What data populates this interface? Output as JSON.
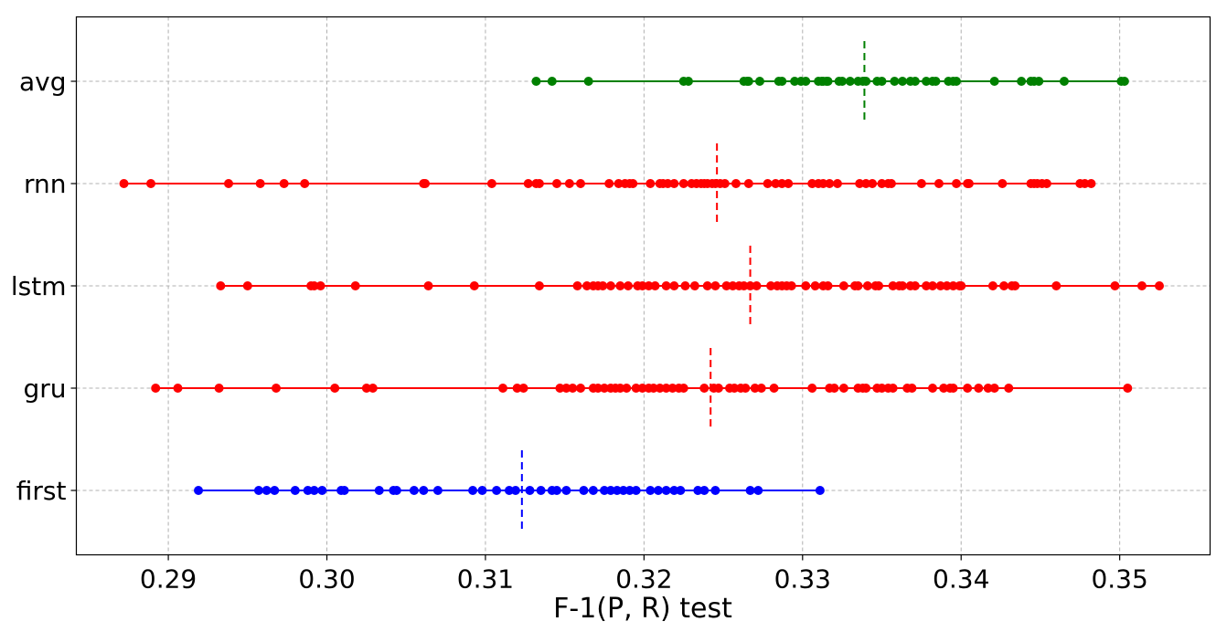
{
  "chart_data": {
    "type": "scatter",
    "xlabel": "F-1(P, R) test",
    "ylabel": "",
    "xlim": [
      0.2842,
      0.3557
    ],
    "xticks": [
      "0.29",
      "0.30",
      "0.31",
      "0.32",
      "0.33",
      "0.34",
      "0.35"
    ],
    "categories": [
      "avg",
      "rnn",
      "lstm",
      "gru",
      "first"
    ],
    "grid": true,
    "series": [
      {
        "category": "avg",
        "color": "#008000",
        "mean": 0.3339,
        "values": [
          0.3132,
          0.3142,
          0.3165,
          0.3225,
          0.3228,
          0.3263,
          0.3265,
          0.3266,
          0.3273,
          0.3285,
          0.3287,
          0.3295,
          0.3299,
          0.3302,
          0.331,
          0.3312,
          0.3313,
          0.3315,
          0.3316,
          0.3323,
          0.3325,
          0.333,
          0.3335,
          0.3338,
          0.334,
          0.3347,
          0.335,
          0.3358,
          0.3363,
          0.3368,
          0.3371,
          0.3378,
          0.3382,
          0.3384,
          0.3392,
          0.3395,
          0.3397,
          0.3421,
          0.3438,
          0.3444,
          0.3446,
          0.3449,
          0.3465,
          0.3501,
          0.3503
        ]
      },
      {
        "category": "rnn",
        "color": "#ff0000",
        "mean": 0.3246,
        "values": [
          0.2872,
          0.2889,
          0.2938,
          0.2958,
          0.2973,
          0.2986,
          0.3061,
          0.3062,
          0.3104,
          0.3127,
          0.3132,
          0.3134,
          0.3145,
          0.3153,
          0.316,
          0.3178,
          0.3184,
          0.3188,
          0.3191,
          0.3193,
          0.3204,
          0.321,
          0.3212,
          0.3215,
          0.3219,
          0.3225,
          0.323,
          0.3233,
          0.3236,
          0.3238,
          0.324,
          0.3243,
          0.3245,
          0.3248,
          0.3251,
          0.3258,
          0.3266,
          0.3278,
          0.3283,
          0.3287,
          0.3291,
          0.3306,
          0.331,
          0.3313,
          0.3317,
          0.3322,
          0.3336,
          0.334,
          0.3344,
          0.335,
          0.3354,
          0.3356,
          0.3375,
          0.3386,
          0.3397,
          0.3404,
          0.3405,
          0.3426,
          0.3444,
          0.3446,
          0.3448,
          0.3451,
          0.3454,
          0.3475,
          0.3478,
          0.3482
        ]
      },
      {
        "category": "lstm",
        "color": "#ff0000",
        "mean": 0.3267,
        "values": [
          0.2933,
          0.295,
          0.299,
          0.2992,
          0.2996,
          0.3018,
          0.3064,
          0.3093,
          0.3134,
          0.3158,
          0.3164,
          0.3168,
          0.3171,
          0.3174,
          0.3179,
          0.3185,
          0.319,
          0.3196,
          0.3199,
          0.3203,
          0.3207,
          0.3214,
          0.3219,
          0.3226,
          0.3232,
          0.324,
          0.3245,
          0.3252,
          0.3256,
          0.326,
          0.3263,
          0.3267,
          0.3271,
          0.328,
          0.3284,
          0.3287,
          0.329,
          0.3293,
          0.3302,
          0.3308,
          0.3313,
          0.3316,
          0.3326,
          0.3333,
          0.3335,
          0.3341,
          0.3346,
          0.3348,
          0.3357,
          0.3361,
          0.3363,
          0.3368,
          0.3371,
          0.3378,
          0.3382,
          0.3387,
          0.3391,
          0.3395,
          0.3399,
          0.34,
          0.342,
          0.3427,
          0.3432,
          0.3434,
          0.346,
          0.3497,
          0.3514,
          0.3525
        ]
      },
      {
        "category": "gru",
        "color": "#ff0000",
        "mean": 0.3242,
        "values": [
          0.2892,
          0.2906,
          0.2932,
          0.2968,
          0.3005,
          0.3025,
          0.3029,
          0.3111,
          0.312,
          0.3124,
          0.3147,
          0.3151,
          0.3155,
          0.316,
          0.3168,
          0.3171,
          0.3175,
          0.3179,
          0.3182,
          0.3185,
          0.3189,
          0.3195,
          0.3199,
          0.3203,
          0.3206,
          0.321,
          0.3214,
          0.3218,
          0.3222,
          0.3225,
          0.3238,
          0.3244,
          0.3247,
          0.3254,
          0.3257,
          0.3261,
          0.3264,
          0.327,
          0.3274,
          0.3282,
          0.3306,
          0.3317,
          0.332,
          0.3326,
          0.3335,
          0.3338,
          0.334,
          0.3347,
          0.335,
          0.3354,
          0.3357,
          0.3366,
          0.3369,
          0.3382,
          0.3389,
          0.3393,
          0.3395,
          0.3404,
          0.3411,
          0.3417,
          0.3421,
          0.343,
          0.3505
        ]
      },
      {
        "category": "first",
        "color": "#0000ff",
        "mean": 0.3123,
        "values": [
          0.2919,
          0.2957,
          0.2962,
          0.2967,
          0.298,
          0.2988,
          0.2992,
          0.2997,
          0.3009,
          0.3011,
          0.3033,
          0.3042,
          0.3044,
          0.3055,
          0.3061,
          0.307,
          0.3092,
          0.3098,
          0.3107,
          0.3115,
          0.3119,
          0.3128,
          0.3135,
          0.3142,
          0.3145,
          0.3151,
          0.3162,
          0.3168,
          0.3175,
          0.3179,
          0.3183,
          0.3187,
          0.3191,
          0.3195,
          0.3204,
          0.3209,
          0.3214,
          0.3219,
          0.3223,
          0.3234,
          0.3238,
          0.3245,
          0.3267,
          0.3272,
          0.3311
        ]
      }
    ]
  }
}
